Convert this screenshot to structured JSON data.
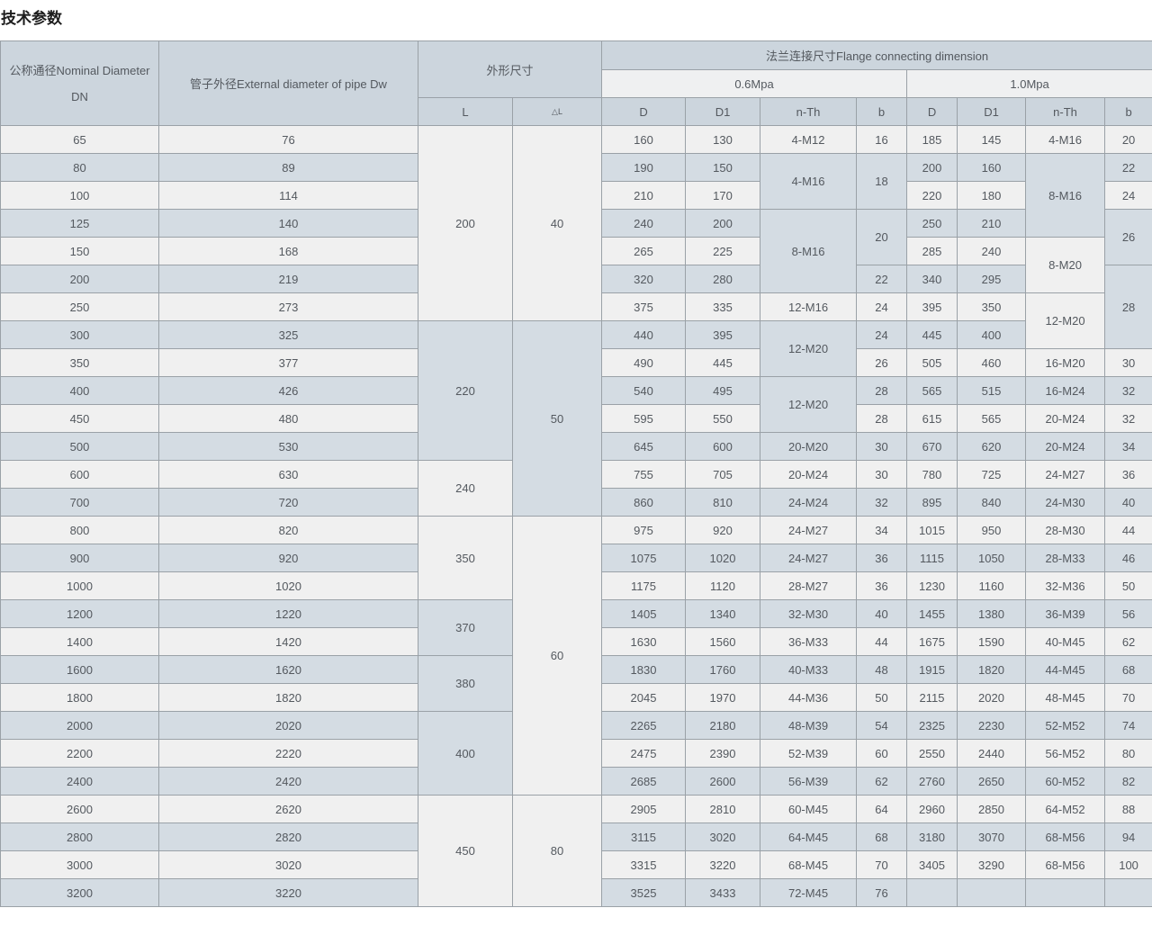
{
  "page_title": "技术参数",
  "colors": {
    "row_light": "#f0f0f0",
    "row_blue": "#d4dce3",
    "header_blue": "#ccd5dd",
    "subheader_light": "#eff0f1",
    "border": "#9aa1a7"
  },
  "table": {
    "header": {
      "dn": "公称通径Nominal Diameter DN",
      "dw": "管子外径External diameter of pipe Dw",
      "outline": "外形尺寸",
      "flange": "法兰连接尺寸Flange connecting dimension",
      "p06": "0.6Mpa",
      "p10": "1.0Mpa",
      "L": "L",
      "dL": "△L",
      "sub": [
        "D",
        "D1",
        "n-Th",
        "b",
        "D",
        "D1",
        "n-Th",
        "b"
      ]
    },
    "column_keys": [
      "dn",
      "dw",
      "L",
      "delta-L",
      "p06-D",
      "p06-D1",
      "p06-nTh",
      "p06-b",
      "p10-D",
      "p10-D1",
      "p10-nTh",
      "p10-b"
    ],
    "rows": [
      [
        "65",
        "76",
        {
          "v": "200",
          "rs": 7
        },
        {
          "v": "40",
          "rs": 7
        },
        "160",
        "130",
        "4-M12",
        "16",
        "185",
        "145",
        "4-M16",
        "20"
      ],
      [
        "80",
        "89",
        null,
        null,
        "190",
        "150",
        {
          "v": "4-M16",
          "rs": 2
        },
        {
          "v": "18",
          "rs": 2
        },
        "200",
        "160",
        {
          "v": "8-M16",
          "rs": 3
        },
        "22"
      ],
      [
        "100",
        "114",
        null,
        null,
        "210",
        "170",
        null,
        null,
        "220",
        "180",
        null,
        "24"
      ],
      [
        "125",
        "140",
        null,
        null,
        "240",
        "200",
        {
          "v": "8-M16",
          "rs": 3
        },
        {
          "v": "20",
          "rs": 2
        },
        "250",
        "210",
        null,
        {
          "v": "26",
          "rs": 2
        }
      ],
      [
        "150",
        "168",
        null,
        null,
        "265",
        "225",
        null,
        null,
        "285",
        "240",
        {
          "v": "8-M20",
          "rs": 2
        },
        null
      ],
      [
        "200",
        "219",
        null,
        null,
        "320",
        "280",
        null,
        "22",
        "340",
        "295",
        null,
        {
          "v": "28",
          "rs": 3
        }
      ],
      [
        "250",
        "273",
        null,
        null,
        "375",
        "335",
        "12-M16",
        "24",
        "395",
        "350",
        {
          "v": "12-M20",
          "rs": 2
        },
        null
      ],
      [
        "300",
        "325",
        {
          "v": "220",
          "rs": 5
        },
        {
          "v": "50",
          "rs": 7
        },
        "440",
        "395",
        {
          "v": "12-M20",
          "rs": 2
        },
        "24",
        "445",
        "400",
        null,
        null
      ],
      [
        "350",
        "377",
        null,
        null,
        "490",
        "445",
        null,
        "26",
        "505",
        "460",
        "16-M20",
        "30"
      ],
      [
        "400",
        "426",
        null,
        null,
        "540",
        "495",
        {
          "v": "12-M20",
          "rs": 2
        },
        "28",
        "565",
        "515",
        "16-M24",
        "32"
      ],
      [
        "450",
        "480",
        null,
        null,
        "595",
        "550",
        null,
        "28",
        "615",
        "565",
        "20-M24",
        "32"
      ],
      [
        "500",
        "530",
        null,
        null,
        "645",
        "600",
        "20-M20",
        "30",
        "670",
        "620",
        "20-M24",
        "34"
      ],
      [
        "600",
        "630",
        {
          "v": "240",
          "rs": 2
        },
        null,
        "755",
        "705",
        "20-M24",
        "30",
        "780",
        "725",
        "24-M27",
        "36"
      ],
      [
        "700",
        "720",
        null,
        null,
        "860",
        "810",
        "24-M24",
        "32",
        "895",
        "840",
        "24-M30",
        "40"
      ],
      [
        "800",
        "820",
        {
          "v": "350",
          "rs": 3
        },
        {
          "v": "60",
          "rs": 10
        },
        "975",
        "920",
        "24-M27",
        "34",
        "1015",
        "950",
        "28-M30",
        "44"
      ],
      [
        "900",
        "920",
        null,
        null,
        "1075",
        "1020",
        "24-M27",
        "36",
        "1115",
        "1050",
        "28-M33",
        "46"
      ],
      [
        "1000",
        "1020",
        null,
        null,
        "1175",
        "1120",
        "28-M27",
        "36",
        "1230",
        "1160",
        "32-M36",
        "50"
      ],
      [
        "1200",
        "1220",
        {
          "v": "370",
          "rs": 2
        },
        null,
        "1405",
        "1340",
        "32-M30",
        "40",
        "1455",
        "1380",
        "36-M39",
        "56"
      ],
      [
        "1400",
        "1420",
        null,
        null,
        "1630",
        "1560",
        "36-M33",
        "44",
        "1675",
        "1590",
        "40-M45",
        "62"
      ],
      [
        "1600",
        "1620",
        {
          "v": "380",
          "rs": 2
        },
        null,
        "1830",
        "1760",
        "40-M33",
        "48",
        "1915",
        "1820",
        "44-M45",
        "68"
      ],
      [
        "1800",
        "1820",
        null,
        null,
        "2045",
        "1970",
        "44-M36",
        "50",
        "2115",
        "2020",
        "48-M45",
        "70"
      ],
      [
        "2000",
        "2020",
        {
          "v": "400",
          "rs": 3
        },
        null,
        "2265",
        "2180",
        "48-M39",
        "54",
        "2325",
        "2230",
        "52-M52",
        "74"
      ],
      [
        "2200",
        "2220",
        null,
        null,
        "2475",
        "2390",
        "52-M39",
        "60",
        "2550",
        "2440",
        "56-M52",
        "80"
      ],
      [
        "2400",
        "2420",
        null,
        null,
        "2685",
        "2600",
        "56-M39",
        "62",
        "2760",
        "2650",
        "60-M52",
        "82"
      ],
      [
        "2600",
        "2620",
        {
          "v": "450",
          "rs": 4
        },
        {
          "v": "80",
          "rs": 4
        },
        "2905",
        "2810",
        "60-M45",
        "64",
        "2960",
        "2850",
        "64-M52",
        "88"
      ],
      [
        "2800",
        "2820",
        null,
        null,
        "3115",
        "3020",
        "64-M45",
        "68",
        "3180",
        "3070",
        "68-M56",
        "94"
      ],
      [
        "3000",
        "3020",
        null,
        null,
        "3315",
        "3220",
        "68-M45",
        "70",
        "3405",
        "3290",
        "68-M56",
        "100"
      ],
      [
        "3200",
        "3220",
        null,
        null,
        "3525",
        "3433",
        "72-M45",
        "76",
        "",
        "",
        "",
        ""
      ]
    ]
  }
}
